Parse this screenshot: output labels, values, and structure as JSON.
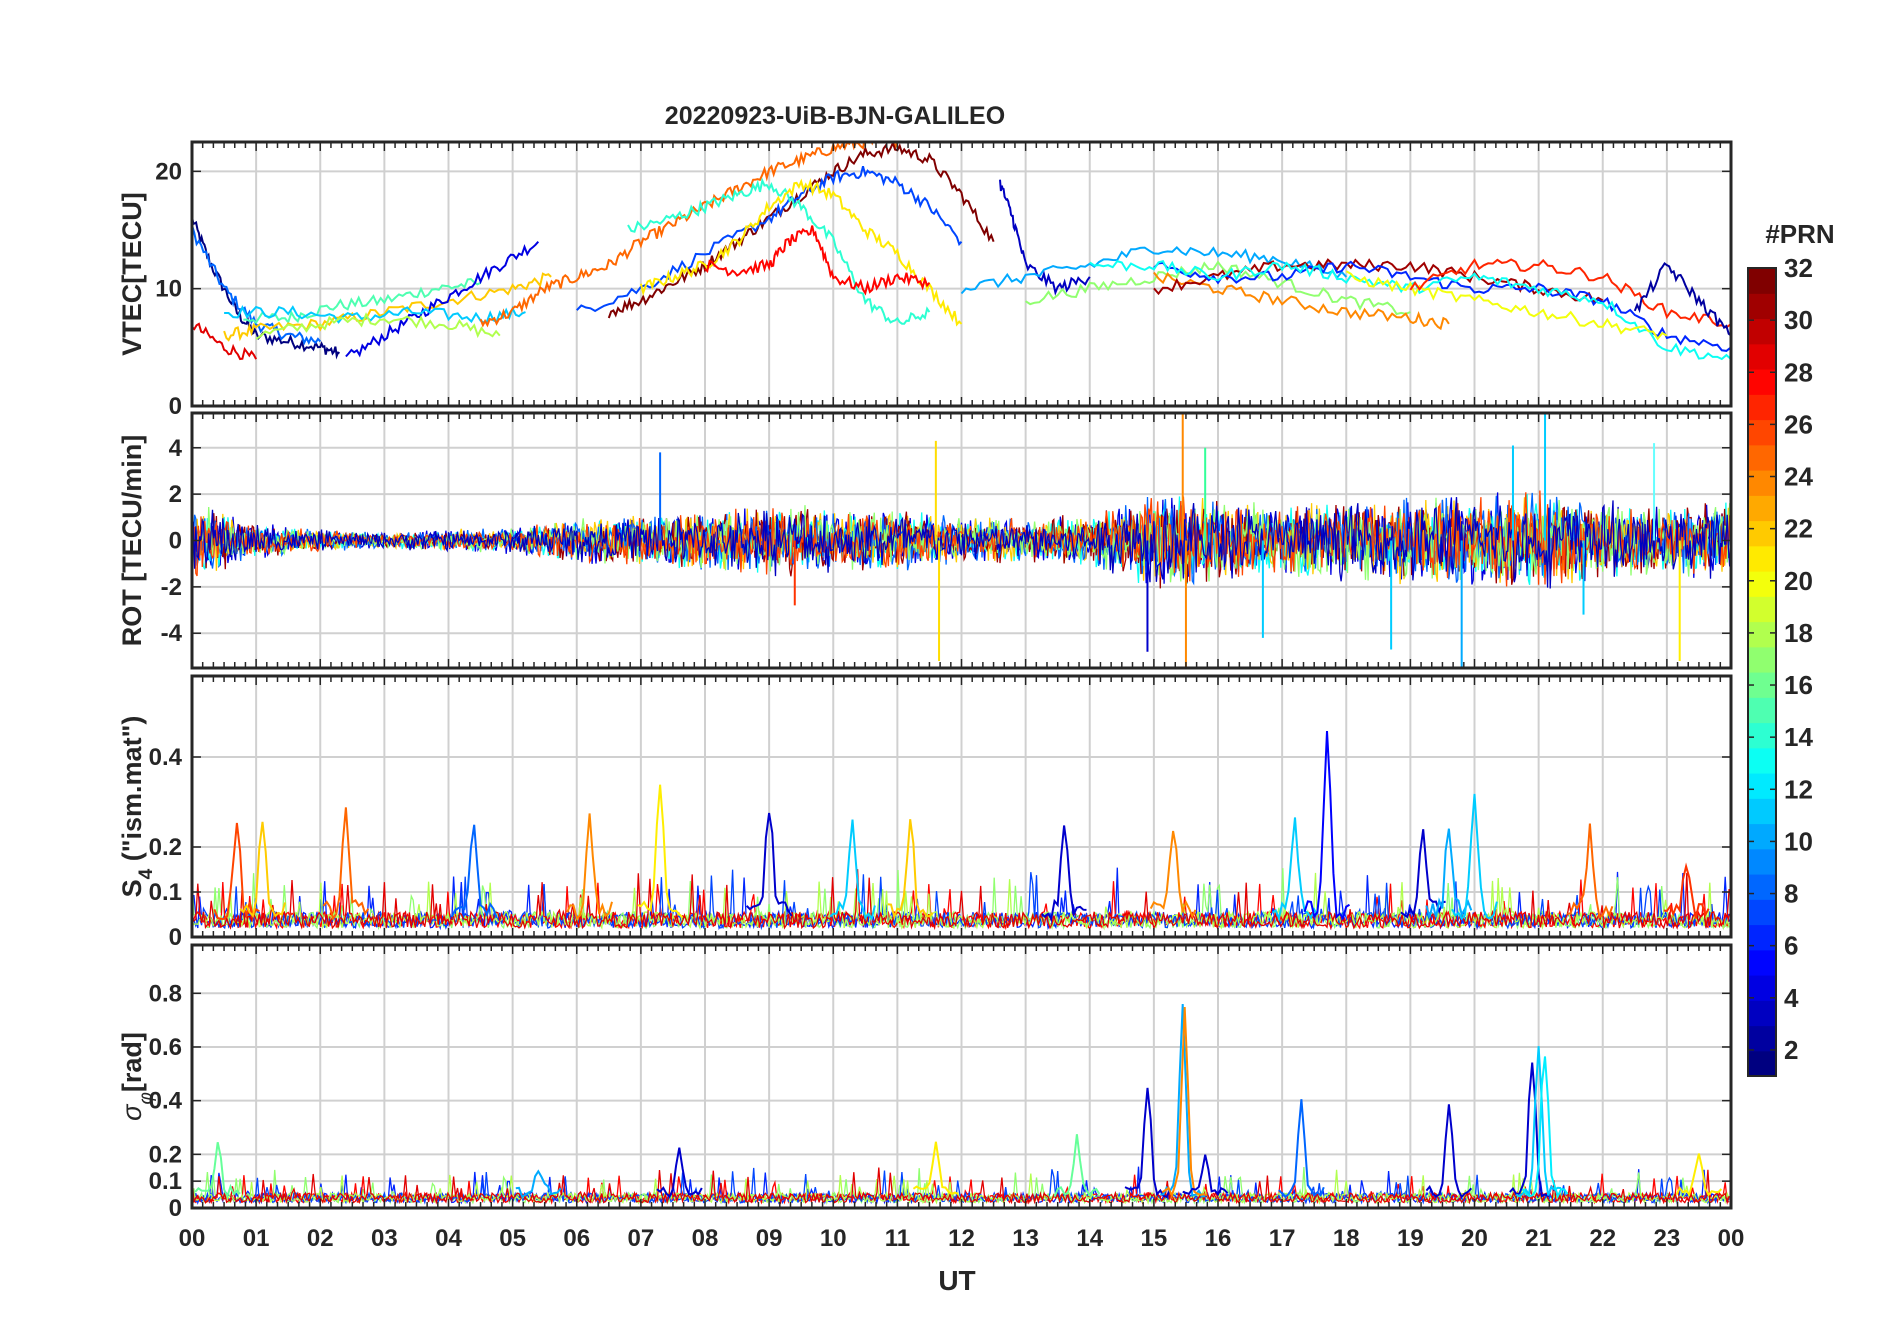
{
  "figure": {
    "title": "20220923-UiB-BJN-GALILEO",
    "xlabel": "UT",
    "colors": {
      "axis": "#262626",
      "grid": "#d0d0d0",
      "background": "#ffffff"
    }
  },
  "chart_data": [
    {
      "type": "line",
      "id": "vtec",
      "ylabel": "VTEC[TECU]",
      "xlim": [
        0,
        24
      ],
      "ylim": [
        0,
        22.5
      ],
      "yticks": [
        0,
        10,
        20
      ],
      "ytick_labels": [
        "0",
        "10",
        "20"
      ],
      "series": [
        {
          "name": "PRN 2",
          "x": [
            0,
            0.3,
            0.7,
            1.0,
            1.5,
            2.0,
            2.3
          ],
          "y": [
            16,
            12,
            8,
            6,
            5.5,
            5,
            4.5
          ]
        },
        {
          "name": "PRN 3",
          "x": [
            0,
            0.5,
            1.0,
            1.5,
            2.0
          ],
          "y": [
            15,
            10,
            7,
            6,
            5.5
          ]
        },
        {
          "name": "PRN 5",
          "x": [
            0.8,
            1.5,
            2.2,
            3.0,
            3.8,
            4.5
          ],
          "y": [
            7.5,
            7.5,
            8.5,
            9,
            10,
            10.5
          ]
        },
        {
          "name": "PRN 9",
          "x": [
            0.5,
            1.0,
            2.0,
            3.0,
            4.0,
            5.0,
            5.6
          ],
          "y": [
            6,
            6.5,
            7,
            8,
            9,
            10,
            11
          ]
        },
        {
          "name": "PRN 12",
          "x": [
            0,
            0.5,
            1.0
          ],
          "y": [
            7,
            5,
            4
          ]
        },
        {
          "name": "PRN 24",
          "x": [
            2.4,
            3.0,
            3.6,
            4.2,
            4.8,
            5.4
          ],
          "y": [
            4,
            6,
            8,
            10,
            12,
            14
          ]
        },
        {
          "name": "PRN 23",
          "x": [
            0.5,
            1.5,
            2.5,
            3.5,
            4.5,
            5.2
          ],
          "y": [
            8,
            8,
            7.5,
            8,
            7.5,
            8
          ]
        },
        {
          "name": "PRN 31",
          "x": [
            1.0,
            2.0,
            3.0,
            4.0,
            4.8
          ],
          "y": [
            6,
            7,
            7.5,
            7,
            6
          ]
        },
        {
          "name": "PRN 13",
          "x": [
            4.5,
            5.0,
            5.5,
            6.0,
            6.5,
            7.0,
            7.5,
            8.0,
            8.5,
            9.0,
            9.5,
            10.0,
            10.5,
            11.0
          ],
          "y": [
            7,
            8,
            10,
            11,
            12,
            14,
            15.5,
            17,
            18.5,
            20,
            21,
            22,
            22.5,
            22.5
          ]
        },
        {
          "name": "PRN 11",
          "x": [
            6.5,
            7.0,
            7.5,
            8.0,
            8.5,
            9.0,
            9.5,
            10.0,
            10.5,
            11.0,
            11.5,
            12.0,
            12.5
          ],
          "y": [
            8,
            9,
            10.5,
            12,
            14,
            16,
            18,
            20,
            21.5,
            22,
            21,
            18,
            14
          ]
        },
        {
          "name": "PRN 8",
          "x": [
            6.0,
            7.0,
            8.0,
            9.0,
            9.5,
            10.0,
            10.5,
            11.0,
            11.5,
            12.0
          ],
          "y": [
            8,
            10,
            13,
            16,
            18,
            19.5,
            20,
            19,
            17,
            14
          ]
        },
        {
          "name": "PRN 19",
          "x": [
            6.8,
            7.5,
            8.0,
            8.5,
            9.0,
            9.5,
            10.0,
            10.5,
            11.0,
            11.5
          ],
          "y": [
            15,
            16,
            17,
            18,
            19,
            17,
            14,
            9,
            7,
            8
          ]
        },
        {
          "name": "PRN 4",
          "x": [
            7.0,
            7.5,
            8.0,
            8.5,
            9.0,
            9.5,
            10.0,
            10.5,
            11.0,
            11.5,
            12.0
          ],
          "y": [
            10,
            11,
            12,
            14,
            17,
            19,
            18,
            15,
            13,
            10,
            7
          ]
        },
        {
          "name": "PRN 29",
          "x": [
            8.0,
            8.5,
            9.0,
            9.3,
            9.7,
            10.0,
            10.5,
            11.0,
            11.5
          ],
          "y": [
            12,
            11.5,
            12,
            14,
            15,
            11,
            10,
            11,
            10.5
          ]
        },
        {
          "name": "PRN 6",
          "x": [
            12.6,
            12.8,
            13.0,
            13.5,
            14.0
          ],
          "y": [
            19,
            16,
            12,
            10,
            11
          ]
        },
        {
          "name": "PRN 10",
          "x": [
            12.0,
            13.0,
            14.0,
            15.0,
            16.0,
            17.0,
            18.0
          ],
          "y": [
            10,
            11,
            12,
            13.5,
            13,
            12.5,
            11
          ]
        },
        {
          "name": "PRN 14",
          "x": [
            13.0,
            14.0,
            15.0,
            16.0,
            17.0,
            18.0,
            19.0
          ],
          "y": [
            9,
            10,
            11,
            12,
            10.5,
            9,
            8
          ]
        },
        {
          "name": "PRN 7",
          "x": [
            15.0,
            16.0,
            17.0,
            18.0,
            19.0,
            19.6
          ],
          "y": [
            11,
            10,
            9,
            8,
            7.5,
            7
          ]
        },
        {
          "name": "PRN 25",
          "x": [
            15.0,
            16.0,
            17.0,
            18.0,
            19.0,
            20.0,
            21.0,
            22.0
          ],
          "y": [
            10,
            11,
            12,
            12,
            12,
            11,
            10,
            9
          ]
        },
        {
          "name": "PRN 26",
          "x": [
            15.0,
            16.0,
            17.0,
            18.0,
            19.0,
            20.0,
            21.0,
            22.0,
            23.0,
            24.0
          ],
          "y": [
            12,
            11,
            11,
            12,
            11,
            10,
            10,
            9,
            6,
            5
          ]
        },
        {
          "name": "PRN 30",
          "x": [
            14.0,
            15.0,
            16.0,
            17.0,
            18.0,
            19.0,
            20.0,
            21.0,
            22.0,
            23.0,
            24.0
          ],
          "y": [
            12,
            12,
            11,
            12,
            11,
            10,
            11,
            10,
            9,
            5,
            4
          ]
        },
        {
          "name": "PRN 12b",
          "x": [
            18.0,
            19.0,
            20.0,
            21.0,
            22.0,
            23.0
          ],
          "y": [
            11,
            10,
            9,
            8,
            7,
            6
          ]
        },
        {
          "name": "PRN 4b",
          "x": [
            19.0,
            20.0,
            21.0,
            22.0,
            23.0,
            24.0
          ],
          "y": [
            10,
            12,
            12,
            11,
            8,
            7
          ]
        },
        {
          "name": "PRN 21",
          "x": [
            22.5,
            23.0,
            23.5,
            24.0
          ],
          "y": [
            8,
            12,
            9,
            6
          ]
        }
      ]
    },
    {
      "type": "line",
      "id": "rot",
      "ylabel": "ROT [TECU/min]",
      "xlim": [
        0,
        24
      ],
      "ylim": [
        -5.5,
        5.5
      ],
      "yticks": [
        -4,
        -2,
        0,
        2,
        4
      ],
      "ytick_labels": [
        "-4",
        "-2",
        "0",
        "2",
        "4"
      ],
      "envelope": {
        "x": [
          0,
          1,
          2,
          3,
          4,
          5,
          6,
          7,
          8,
          9,
          10,
          11,
          12,
          13,
          14,
          15,
          16,
          17,
          18,
          19,
          20,
          21,
          22,
          23,
          24
        ],
        "amplitude": [
          1.8,
          0.8,
          0.5,
          0.4,
          0.5,
          0.6,
          1.0,
          1.2,
          1.4,
          1.6,
          1.5,
          1.5,
          1.0,
          1.0,
          1.2,
          2.2,
          2.0,
          1.6,
          1.8,
          2.0,
          2.2,
          2.2,
          1.8,
          1.6,
          1.8
        ]
      },
      "spikes": [
        {
          "x": 11.6,
          "y": 4.3,
          "color": "#ffdd00"
        },
        {
          "x": 11.65,
          "y": -5.2,
          "color": "#ffdd00"
        },
        {
          "x": 15.45,
          "y": 5.5,
          "color": "#ff8800"
        },
        {
          "x": 15.5,
          "y": -5.5,
          "color": "#ff8800"
        },
        {
          "x": 21.1,
          "y": 5.5,
          "color": "#00ccff"
        },
        {
          "x": 19.8,
          "y": -5.5,
          "color": "#00aaff"
        },
        {
          "x": 22.8,
          "y": 4.2,
          "color": "#66ffff"
        },
        {
          "x": 23.2,
          "y": -5.2,
          "color": "#ffee00"
        },
        {
          "x": 14.9,
          "y": -4.8,
          "color": "#0000cc"
        },
        {
          "x": 15.8,
          "y": 4.0,
          "color": "#33ff99"
        },
        {
          "x": 16.7,
          "y": -4.2,
          "color": "#00ccff"
        },
        {
          "x": 7.3,
          "y": 3.8,
          "color": "#0066ff"
        },
        {
          "x": 9.4,
          "y": -2.8,
          "color": "#ff3300"
        },
        {
          "x": 18.7,
          "y": -4.7,
          "color": "#00ccff"
        },
        {
          "x": 20.6,
          "y": 4.1,
          "color": "#00ccff"
        },
        {
          "x": 21.7,
          "y": -3.2,
          "color": "#00ccff"
        }
      ]
    },
    {
      "type": "line",
      "id": "s4",
      "ylabel": "S4 (\"ism.mat\")",
      "ylabel_main": "S",
      "ylabel_sub": "4",
      "ylabel_rest": " (\"ism.mat\")",
      "xlim": [
        0,
        24
      ],
      "ylim": [
        0,
        0.58
      ],
      "yticks": [
        0,
        0.1,
        0.2,
        0.4
      ],
      "ytick_labels": [
        "0",
        "0.1",
        "0.2",
        "0.4"
      ],
      "baseline": 0.04,
      "spikes": [
        {
          "x": 0.7,
          "y": 0.29,
          "color": "#ff4400"
        },
        {
          "x": 1.1,
          "y": 0.28,
          "color": "#ffcc00"
        },
        {
          "x": 2.4,
          "y": 0.27,
          "color": "#ff6600"
        },
        {
          "x": 4.4,
          "y": 0.25,
          "color": "#0066ff"
        },
        {
          "x": 6.2,
          "y": 0.24,
          "color": "#ff8800"
        },
        {
          "x": 7.3,
          "y": 0.34,
          "color": "#ffee00"
        },
        {
          "x": 9.0,
          "y": 0.32,
          "color": "#0000cc"
        },
        {
          "x": 10.3,
          "y": 0.27,
          "color": "#00ccff"
        },
        {
          "x": 11.2,
          "y": 0.28,
          "color": "#ffcc00"
        },
        {
          "x": 13.6,
          "y": 0.28,
          "color": "#0000cc"
        },
        {
          "x": 15.3,
          "y": 0.25,
          "color": "#ff8800"
        },
        {
          "x": 17.2,
          "y": 0.27,
          "color": "#00ccff"
        },
        {
          "x": 17.7,
          "y": 0.52,
          "color": "#0000ff"
        },
        {
          "x": 19.2,
          "y": 0.25,
          "color": "#0000cc"
        },
        {
          "x": 19.6,
          "y": 0.25,
          "color": "#00aaff"
        },
        {
          "x": 20.0,
          "y": 0.34,
          "color": "#00ccff"
        },
        {
          "x": 21.8,
          "y": 0.24,
          "color": "#ff6600"
        },
        {
          "x": 23.3,
          "y": 0.14,
          "color": "#ff3300"
        }
      ]
    },
    {
      "type": "line",
      "id": "sigma_phi",
      "ylabel": "σφ[rad]",
      "ylabel_main": "σ",
      "ylabel_sub": "φ",
      "ylabel_rest": "[rad]",
      "xlim": [
        0,
        24
      ],
      "ylim": [
        0,
        0.98
      ],
      "yticks": [
        0,
        0.1,
        0.2,
        0.4,
        0.6,
        0.8
      ],
      "ytick_labels": [
        "0",
        "0.1",
        "0.2",
        "0.4",
        "0.6",
        "0.8"
      ],
      "baseline": 0.04,
      "spikes": [
        {
          "x": 0.4,
          "y": 0.23,
          "color": "#66ff99"
        },
        {
          "x": 5.4,
          "y": 0.14,
          "color": "#00aaff"
        },
        {
          "x": 7.6,
          "y": 0.22,
          "color": "#0000cc"
        },
        {
          "x": 11.6,
          "y": 0.24,
          "color": "#ffee00"
        },
        {
          "x": 13.8,
          "y": 0.26,
          "color": "#66ff99"
        },
        {
          "x": 14.9,
          "y": 0.49,
          "color": "#0000cc"
        },
        {
          "x": 15.45,
          "y": 0.81,
          "color": "#00aaff"
        },
        {
          "x": 15.48,
          "y": 0.75,
          "color": "#ff8800"
        },
        {
          "x": 15.8,
          "y": 0.2,
          "color": "#0000cc"
        },
        {
          "x": 17.3,
          "y": 0.42,
          "color": "#0066ff"
        },
        {
          "x": 19.6,
          "y": 0.41,
          "color": "#0000cc"
        },
        {
          "x": 20.9,
          "y": 0.6,
          "color": "#0000cc"
        },
        {
          "x": 21.0,
          "y": 0.68,
          "color": "#00ccff"
        },
        {
          "x": 21.1,
          "y": 0.68,
          "color": "#00eeff"
        },
        {
          "x": 23.5,
          "y": 0.2,
          "color": "#ffee00"
        }
      ]
    }
  ],
  "xaxis": {
    "range": [
      0,
      24
    ],
    "tick_labels": [
      "00",
      "01",
      "02",
      "03",
      "04",
      "05",
      "06",
      "07",
      "08",
      "09",
      "10",
      "11",
      "12",
      "13",
      "14",
      "15",
      "16",
      "17",
      "18",
      "19",
      "20",
      "21",
      "22",
      "23",
      "00"
    ]
  },
  "colorbar": {
    "title": "#PRN",
    "range": [
      1,
      32
    ],
    "tick_values": [
      2,
      4,
      6,
      8,
      10,
      12,
      14,
      16,
      18,
      20,
      22,
      24,
      26,
      28,
      30,
      32
    ],
    "tick_labels": [
      "2",
      "4",
      "6",
      "8",
      "10",
      "12",
      "14",
      "16",
      "18",
      "20",
      "22",
      "24",
      "26",
      "28",
      "30",
      "32"
    ],
    "colormap": "jet",
    "levels": 32
  }
}
